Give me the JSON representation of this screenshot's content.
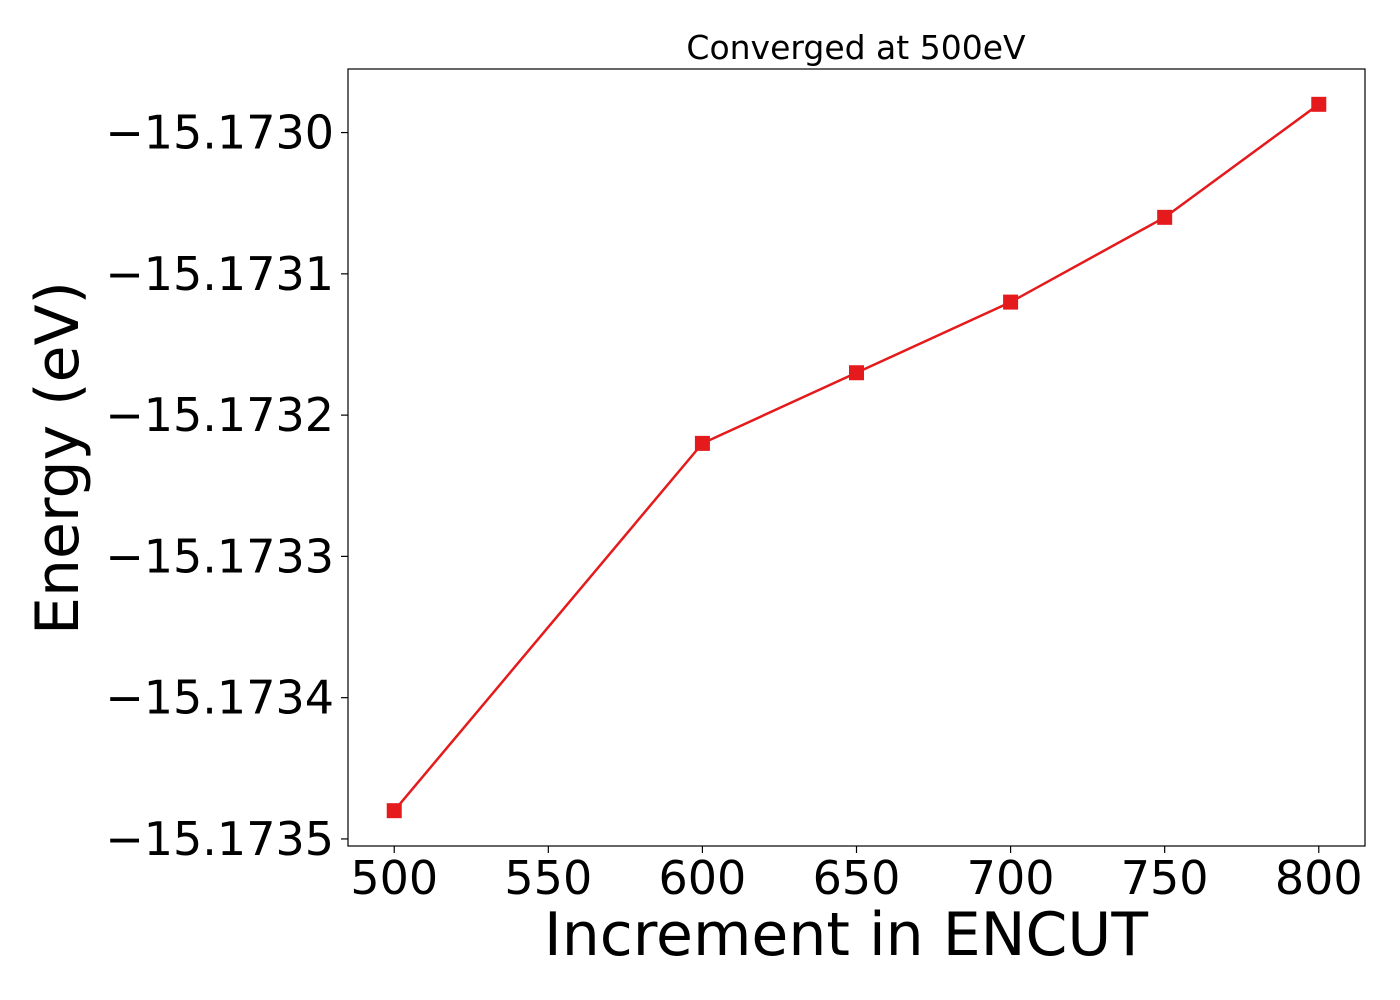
{
  "chart_data": {
    "type": "line",
    "title": "Converged at 500eV",
    "xlabel": "Increment in ENCUT",
    "ylabel": "Energy (eV)",
    "x": [
      500,
      600,
      650,
      700,
      750,
      800
    ],
    "series": [
      {
        "values": [
          -15.17348,
          -15.17322,
          -15.17317,
          -15.17312,
          -15.17306,
          -15.17298
        ],
        "color": "#e41a1c",
        "marker": "square"
      }
    ],
    "xticks": [
      500,
      550,
      600,
      650,
      700,
      750,
      800
    ],
    "xtick_labels": [
      "500",
      "550",
      "600",
      "650",
      "700",
      "750",
      "800"
    ],
    "yticks": [
      -15.1735,
      -15.1734,
      -15.1733,
      -15.1732,
      -15.1731,
      -15.173
    ],
    "ytick_labels": [
      "−15.1735",
      "−15.1734",
      "−15.1733",
      "−15.1732",
      "−15.1731",
      "−15.1730"
    ],
    "xlim": [
      485,
      815
    ],
    "ylim": [
      -15.173505,
      -15.172955
    ],
    "grid": false,
    "legend": "none"
  }
}
